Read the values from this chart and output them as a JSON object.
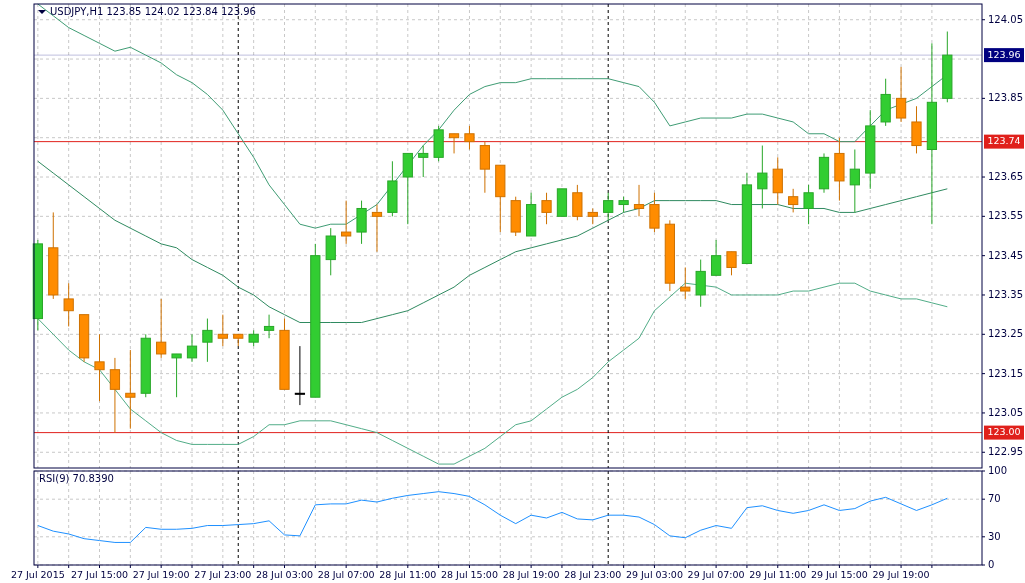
{
  "chart_data": [
    {
      "type": "candlestick",
      "title": "USDJPY,H1  123.85 124.02 123.84 123.96",
      "x": [
        "2015-07-27T11:00",
        "2015-07-27T12:00",
        "2015-07-27T13:00",
        "2015-07-27T14:00",
        "2015-07-27T15:00",
        "2015-07-27T16:00",
        "2015-07-27T17:00",
        "2015-07-27T18:00",
        "2015-07-27T19:00",
        "2015-07-27T20:00",
        "2015-07-27T21:00",
        "2015-07-27T22:00",
        "2015-07-27T23:00",
        "2015-07-28T00:00",
        "2015-07-28T01:00",
        "2015-07-28T02:00",
        "2015-07-28T03:00",
        "2015-07-28T04:00",
        "2015-07-28T05:00",
        "2015-07-28T06:00",
        "2015-07-28T07:00",
        "2015-07-28T08:00",
        "2015-07-28T09:00",
        "2015-07-28T10:00",
        "2015-07-28T11:00",
        "2015-07-28T12:00",
        "2015-07-28T13:00",
        "2015-07-28T14:00",
        "2015-07-28T15:00",
        "2015-07-28T16:00",
        "2015-07-28T17:00",
        "2015-07-28T18:00",
        "2015-07-28T19:00",
        "2015-07-28T20:00",
        "2015-07-28T21:00",
        "2015-07-28T22:00",
        "2015-07-28T23:00",
        "2015-07-29T00:00",
        "2015-07-29T01:00",
        "2015-07-29T02:00",
        "2015-07-29T03:00",
        "2015-07-29T04:00",
        "2015-07-29T05:00",
        "2015-07-29T06:00",
        "2015-07-29T07:00",
        "2015-07-29T08:00",
        "2015-07-29T09:00",
        "2015-07-29T10:00",
        "2015-07-29T11:00",
        "2015-07-29T12:00",
        "2015-07-29T13:00",
        "2015-07-29T14:00",
        "2015-07-29T15:00",
        "2015-07-29T16:00",
        "2015-07-29T17:00",
        "2015-07-29T18:00",
        "2015-07-29T19:00",
        "2015-07-29T20:00",
        "2015-07-29T21:00",
        "2015-07-29T22:00"
      ],
      "ohlc": [
        [
          123.29,
          123.49,
          123.26,
          123.48
        ],
        [
          123.47,
          123.56,
          123.34,
          123.35
        ],
        [
          123.34,
          123.38,
          123.27,
          123.31
        ],
        [
          123.3,
          123.3,
          123.18,
          123.19
        ],
        [
          123.18,
          123.25,
          123.08,
          123.16
        ],
        [
          123.16,
          123.19,
          123.0,
          123.11
        ],
        [
          123.1,
          123.21,
          123.01,
          123.09
        ],
        [
          123.1,
          123.25,
          123.09,
          123.24
        ],
        [
          123.23,
          123.34,
          123.19,
          123.2
        ],
        [
          123.19,
          123.2,
          123.09,
          123.2
        ],
        [
          123.19,
          123.25,
          123.18,
          123.22
        ],
        [
          123.23,
          123.29,
          123.18,
          123.26
        ],
        [
          123.25,
          123.3,
          123.22,
          123.24
        ],
        [
          123.25,
          123.25,
          123.22,
          123.24
        ],
        [
          123.23,
          123.26,
          123.22,
          123.25
        ],
        [
          123.26,
          123.3,
          123.24,
          123.27
        ],
        [
          123.26,
          123.29,
          123.11,
          123.11
        ],
        [
          123.1,
          123.22,
          123.07,
          123.1
        ],
        [
          123.09,
          123.48,
          123.09,
          123.45
        ],
        [
          123.44,
          123.52,
          123.4,
          123.5
        ],
        [
          123.51,
          123.59,
          123.48,
          123.5
        ],
        [
          123.51,
          123.59,
          123.48,
          123.57
        ],
        [
          123.56,
          123.58,
          123.46,
          123.55
        ],
        [
          123.56,
          123.69,
          123.55,
          123.64
        ],
        [
          123.65,
          123.71,
          123.53,
          123.71
        ],
        [
          123.7,
          123.73,
          123.65,
          123.71
        ],
        [
          123.7,
          123.78,
          123.69,
          123.77
        ],
        [
          123.76,
          123.76,
          123.71,
          123.75
        ],
        [
          123.76,
          123.78,
          123.72,
          123.74
        ],
        [
          123.73,
          123.74,
          123.61,
          123.67
        ],
        [
          123.68,
          123.68,
          123.51,
          123.6
        ],
        [
          123.59,
          123.6,
          123.5,
          123.51
        ],
        [
          123.5,
          123.61,
          123.5,
          123.58
        ],
        [
          123.59,
          123.61,
          123.53,
          123.56
        ],
        [
          123.55,
          123.62,
          123.55,
          123.62
        ],
        [
          123.61,
          123.63,
          123.54,
          123.55
        ],
        [
          123.56,
          123.57,
          123.53,
          123.55
        ],
        [
          123.56,
          123.61,
          123.54,
          123.59
        ],
        [
          123.58,
          123.6,
          123.56,
          123.59
        ],
        [
          123.58,
          123.63,
          123.55,
          123.57
        ],
        [
          123.58,
          123.61,
          123.51,
          123.52
        ],
        [
          123.53,
          123.54,
          123.36,
          123.38
        ],
        [
          123.37,
          123.42,
          123.34,
          123.36
        ],
        [
          123.35,
          123.44,
          123.32,
          123.41
        ],
        [
          123.4,
          123.49,
          123.4,
          123.45
        ],
        [
          123.46,
          123.46,
          123.4,
          123.42
        ],
        [
          123.43,
          123.66,
          123.43,
          123.63
        ],
        [
          123.62,
          123.73,
          123.57,
          123.66
        ],
        [
          123.67,
          123.7,
          123.58,
          123.61
        ],
        [
          123.6,
          123.62,
          123.56,
          123.58
        ],
        [
          123.57,
          123.63,
          123.53,
          123.61
        ],
        [
          123.62,
          123.71,
          123.61,
          123.7
        ],
        [
          123.71,
          123.75,
          123.59,
          123.64
        ],
        [
          123.63,
          123.72,
          123.56,
          123.67
        ],
        [
          123.66,
          123.82,
          123.62,
          123.78
        ],
        [
          123.79,
          123.9,
          123.78,
          123.86
        ],
        [
          123.85,
          123.93,
          123.79,
          123.8
        ],
        [
          123.79,
          123.83,
          123.71,
          123.73
        ],
        [
          123.72,
          123.99,
          123.53,
          123.84
        ],
        [
          123.85,
          124.02,
          123.84,
          123.96
        ]
      ],
      "colors": [
        "#32cd32",
        "#ff8c00",
        "#ff8c00",
        "#ff8c00",
        "#ff8c00",
        "#ff8c00",
        "#ff8c00",
        "#32cd32",
        "#ff8c00",
        "#32cd32",
        "#32cd32",
        "#32cd32",
        "#ff8c00",
        "#ff8c00",
        "#32cd32",
        "#32cd32",
        "#ff8c00",
        "#000000",
        "#32cd32",
        "#32cd32",
        "#ff8c00",
        "#32cd32",
        "#ff8c00",
        "#32cd32",
        "#32cd32",
        "#32cd32",
        "#32cd32",
        "#ff8c00",
        "#ff8c00",
        "#ff8c00",
        "#ff8c00",
        "#ff8c00",
        "#32cd32",
        "#ff8c00",
        "#32cd32",
        "#ff8c00",
        "#ff8c00",
        "#32cd32",
        "#32cd32",
        "#ff8c00",
        "#ff8c00",
        "#ff8c00",
        "#ff8c00",
        "#32cd32",
        "#32cd32",
        "#ff8c00",
        "#32cd32",
        "#32cd32",
        "#ff8c00",
        "#ff8c00",
        "#32cd32",
        "#32cd32",
        "#ff8c00",
        "#32cd32",
        "#32cd32",
        "#32cd32",
        "#ff8c00",
        "#ff8c00",
        "#32cd32",
        "#32cd32"
      ],
      "series": [
        {
          "type": "line",
          "color": "#3f9c74",
          "values": [
            124.09,
            124.06,
            124.03,
            124.01,
            123.99,
            123.97,
            123.98,
            123.96,
            123.94,
            123.91,
            123.89,
            123.86,
            123.82,
            123.76,
            123.7,
            123.63,
            123.58,
            123.53,
            123.52,
            123.53,
            123.53,
            null,
            123.58,
            123.63,
            123.68,
            123.73,
            123.77,
            123.82,
            123.86,
            123.88,
            123.89,
            123.89,
            123.9,
            123.9,
            123.9,
            123.9,
            123.9,
            123.9,
            123.89,
            123.88,
            123.84,
            123.78,
            123.79,
            123.8,
            123.8,
            123.8,
            123.81,
            123.81,
            123.8,
            123.79,
            123.76,
            123.76,
            123.74,
            123.74,
            123.78,
            123.82,
            null,
            123.85,
            123.88,
            123.91
          ]
        },
        {
          "type": "line",
          "color": "#2f8a60",
          "values": [
            123.69,
            123.66,
            123.63,
            123.6,
            123.57,
            123.54,
            123.52,
            123.5,
            123.48,
            123.47,
            123.44,
            123.42,
            123.4,
            123.37,
            123.35,
            123.32,
            123.3,
            123.28,
            null,
            123.28,
            123.28,
            123.28,
            123.29,
            123.3,
            123.31,
            123.33,
            123.35,
            123.37,
            123.4,
            123.42,
            123.44,
            123.46,
            123.47,
            123.48,
            123.49,
            123.5,
            123.52,
            123.54,
            123.56,
            123.57,
            123.59,
            123.59,
            123.59,
            123.59,
            123.59,
            123.58,
            null,
            123.58,
            123.58,
            123.57,
            123.57,
            123.57,
            123.56,
            123.56,
            123.57,
            123.58,
            123.59,
            123.6,
            123.61,
            123.62
          ]
        },
        {
          "type": "line",
          "color": "#52ad88",
          "values": [
            123.29,
            123.25,
            123.21,
            123.18,
            123.16,
            123.11,
            123.06,
            123.03,
            123.0,
            122.98,
            122.97,
            122.97,
            122.97,
            122.97,
            122.99,
            123.02,
            123.02,
            123.03,
            123.03,
            123.03,
            123.02,
            123.01,
            123.0,
            122.98,
            122.96,
            122.94,
            122.92,
            122.92,
            122.94,
            122.96,
            122.99,
            123.02,
            123.03,
            123.06,
            123.09,
            123.11,
            123.14,
            123.18,
            123.21,
            123.24,
            123.31,
            null,
            123.38,
            null,
            123.37,
            123.35,
            123.35,
            123.35,
            123.35,
            123.36,
            123.36,
            123.37,
            123.38,
            123.38,
            123.36,
            123.35,
            123.34,
            123.34,
            123.33,
            123.32
          ]
        }
      ],
      "xlim": [
        "2015-07-27T10:45",
        "2015-07-30T00:15"
      ],
      "ylim": [
        122.91,
        124.09
      ],
      "yticks": [
        124.05,
        {
          "value": 123.95,
          "label": null
        },
        123.85,
        {
          "value": 123.75,
          "label": null
        },
        123.65,
        123.55,
        123.45,
        123.35,
        123.25,
        123.15,
        123.05,
        122.95
      ],
      "ref_lines": [
        {
          "axis": "y",
          "value": 123.74,
          "label": "123.74",
          "color": "#e0201b"
        },
        {
          "axis": "y",
          "value": 123.0,
          "label": "123.00",
          "color": "#e0201b"
        },
        {
          "axis": "y",
          "value": 123.96,
          "label": "123.96",
          "color": "#000080"
        },
        {
          "axis": "x",
          "value": "2015-07-28T00:00",
          "color": "#000000",
          "line_style": "dashed"
        },
        {
          "axis": "x",
          "value": "2015-07-29T00:00",
          "color": "#000000",
          "line_style": "dashed"
        }
      ],
      "grid": true,
      "tick_labels": "y",
      "xticks": [
        {
          "value": "2015-07-27T11:00",
          "label": null
        },
        {
          "value": "2015-07-27T13:00",
          "label": null
        },
        {
          "value": "2015-07-27T15:00",
          "label": null
        },
        {
          "value": "2015-07-27T17:00",
          "label": null
        },
        {
          "value": "2015-07-27T19:00",
          "label": null
        },
        {
          "value": "2015-07-27T21:00",
          "label": null
        },
        {
          "value": "2015-07-27T23:00",
          "label": null
        },
        {
          "value": "2015-07-28T01:00",
          "label": null
        },
        {
          "value": "2015-07-28T03:00",
          "label": null
        },
        {
          "value": "2015-07-28T05:00",
          "label": null
        },
        {
          "value": "2015-07-28T07:00",
          "label": null
        },
        {
          "value": "2015-07-28T09:00",
          "label": null
        },
        {
          "value": "2015-07-28T11:00",
          "label": null
        },
        {
          "value": "2015-07-28T13:00",
          "label": null
        },
        {
          "value": "2015-07-28T15:00",
          "label": null
        },
        {
          "value": "2015-07-28T17:00",
          "label": null
        },
        {
          "value": "2015-07-28T19:00",
          "label": null
        },
        {
          "value": "2015-07-28T21:00",
          "label": null
        },
        {
          "value": "2015-07-28T23:00",
          "label": null
        },
        {
          "value": "2015-07-29T01:00",
          "label": null
        },
        {
          "value": "2015-07-29T03:00",
          "label": null
        },
        {
          "value": "2015-07-29T05:00",
          "label": null
        },
        {
          "value": "2015-07-29T07:00",
          "label": null
        },
        {
          "value": "2015-07-29T09:00",
          "label": null
        },
        {
          "value": "2015-07-29T11:00",
          "label": null
        },
        {
          "value": "2015-07-29T13:00",
          "label": null
        },
        {
          "value": "2015-07-29T15:00",
          "label": null
        },
        {
          "value": "2015-07-29T17:00",
          "label": null
        },
        {
          "value": "2015-07-29T19:00",
          "label": null
        },
        {
          "value": "2015-07-29T21:00",
          "label": null
        }
      ]
    },
    {
      "type": "line",
      "title": "RSI(9) 70.8390",
      "x": [
        "2015-07-27T11:00",
        "2015-07-27T12:00",
        "2015-07-27T13:00",
        "2015-07-27T14:00",
        "2015-07-27T15:00",
        "2015-07-27T16:00",
        "2015-07-27T17:00",
        "2015-07-27T18:00",
        "2015-07-27T19:00",
        "2015-07-27T20:00",
        "2015-07-27T21:00",
        "2015-07-27T22:00",
        "2015-07-27T23:00",
        "2015-07-28T00:00",
        "2015-07-28T01:00",
        "2015-07-28T02:00",
        "2015-07-28T03:00",
        "2015-07-28T04:00",
        "2015-07-28T05:00",
        "2015-07-28T06:00",
        "2015-07-28T07:00",
        "2015-07-28T08:00",
        "2015-07-28T09:00",
        "2015-07-28T10:00",
        "2015-07-28T11:00",
        "2015-07-28T12:00",
        "2015-07-28T13:00",
        "2015-07-28T14:00",
        "2015-07-28T15:00",
        "2015-07-28T16:00",
        "2015-07-28T17:00",
        "2015-07-28T18:00",
        "2015-07-28T19:00",
        "2015-07-28T20:00",
        "2015-07-28T21:00",
        "2015-07-28T22:00",
        "2015-07-28T23:00",
        "2015-07-29T00:00",
        "2015-07-29T01:00",
        "2015-07-29T02:00",
        "2015-07-29T03:00",
        "2015-07-29T04:00",
        "2015-07-29T05:00",
        "2015-07-29T06:00",
        "2015-07-29T07:00",
        "2015-07-29T08:00",
        "2015-07-29T09:00",
        "2015-07-29T10:00",
        "2015-07-29T11:00",
        "2015-07-29T12:00",
        "2015-07-29T13:00",
        "2015-07-29T14:00",
        "2015-07-29T15:00",
        "2015-07-29T16:00",
        "2015-07-29T17:00",
        "2015-07-29T18:00",
        "2015-07-29T19:00",
        "2015-07-29T20:00",
        "2015-07-29T21:00",
        "2015-07-29T22:00"
      ],
      "series": [
        {
          "color": "#1e90ff",
          "values": [
            42,
            36,
            33,
            28,
            26,
            24,
            24,
            40,
            38,
            38,
            39,
            42,
            42,
            43,
            44,
            47,
            32,
            31,
            64,
            65,
            65,
            69,
            67,
            71,
            74,
            76,
            78,
            76,
            73,
            64,
            53,
            44,
            53,
            50,
            56,
            49,
            48,
            53,
            53,
            51,
            43,
            31,
            29,
            37,
            42,
            39,
            61,
            63,
            58,
            55,
            58,
            64,
            58,
            60,
            68,
            72,
            65,
            58,
            64,
            71
          ]
        }
      ],
      "xlim": [
        "2015-07-27T10:45",
        "2015-07-30T00:15"
      ],
      "ylim": [
        0,
        100
      ],
      "yticks": [
        0,
        30,
        70,
        100
      ],
      "ref_lines": [
        {
          "axis": "x",
          "value": "2015-07-28T00:00",
          "color": "#000000",
          "line_style": "dashed"
        },
        {
          "axis": "x",
          "value": "2015-07-29T00:00",
          "color": "#000000",
          "line_style": "dashed"
        }
      ],
      "grid": true,
      "xticks": [
        {
          "value": "2015-07-27T11:00",
          "label": "27 Jul 2015"
        },
        {
          "value": "2015-07-27T13:00",
          "label": null
        },
        {
          "value": "2015-07-27T15:00",
          "label": "27 Jul 15:00"
        },
        {
          "value": "2015-07-27T17:00",
          "label": null
        },
        {
          "value": "2015-07-27T19:00",
          "label": "27 Jul 19:00"
        },
        {
          "value": "2015-07-27T21:00",
          "label": null
        },
        {
          "value": "2015-07-27T23:00",
          "label": "27 Jul 23:00"
        },
        {
          "value": "2015-07-28T01:00",
          "label": null
        },
        {
          "value": "2015-07-28T03:00",
          "label": "28 Jul 03:00"
        },
        {
          "value": "2015-07-28T05:00",
          "label": null
        },
        {
          "value": "2015-07-28T07:00",
          "label": "28 Jul 07:00"
        },
        {
          "value": "2015-07-28T09:00",
          "label": null
        },
        {
          "value": "2015-07-28T11:00",
          "label": "28 Jul 11:00"
        },
        {
          "value": "2015-07-28T13:00",
          "label": null
        },
        {
          "value": "2015-07-28T15:00",
          "label": "28 Jul 15:00"
        },
        {
          "value": "2015-07-28T17:00",
          "label": null
        },
        {
          "value": "2015-07-28T19:00",
          "label": "28 Jul 19:00"
        },
        {
          "value": "2015-07-28T21:00",
          "label": null
        },
        {
          "value": "2015-07-28T23:00",
          "label": "28 Jul 23:00"
        },
        {
          "value": "2015-07-29T01:00",
          "label": null
        },
        {
          "value": "2015-07-29T03:00",
          "label": "29 Jul 03:00"
        },
        {
          "value": "2015-07-29T05:00",
          "label": null
        },
        {
          "value": "2015-07-29T07:00",
          "label": "29 Jul 07:00"
        },
        {
          "value": "2015-07-29T09:00",
          "label": null
        },
        {
          "value": "2015-07-29T11:00",
          "label": "29 Jul 11:00"
        },
        {
          "value": "2015-07-29T13:00",
          "label": null
        },
        {
          "value": "2015-07-29T15:00",
          "label": "29 Jul 15:00"
        },
        {
          "value": "2015-07-29T17:00",
          "label": null
        },
        {
          "value": "2015-07-29T19:00",
          "label": "29 Jul 19:00"
        },
        {
          "value": "2015-07-29T21:00",
          "label": null
        }
      ]
    }
  ]
}
